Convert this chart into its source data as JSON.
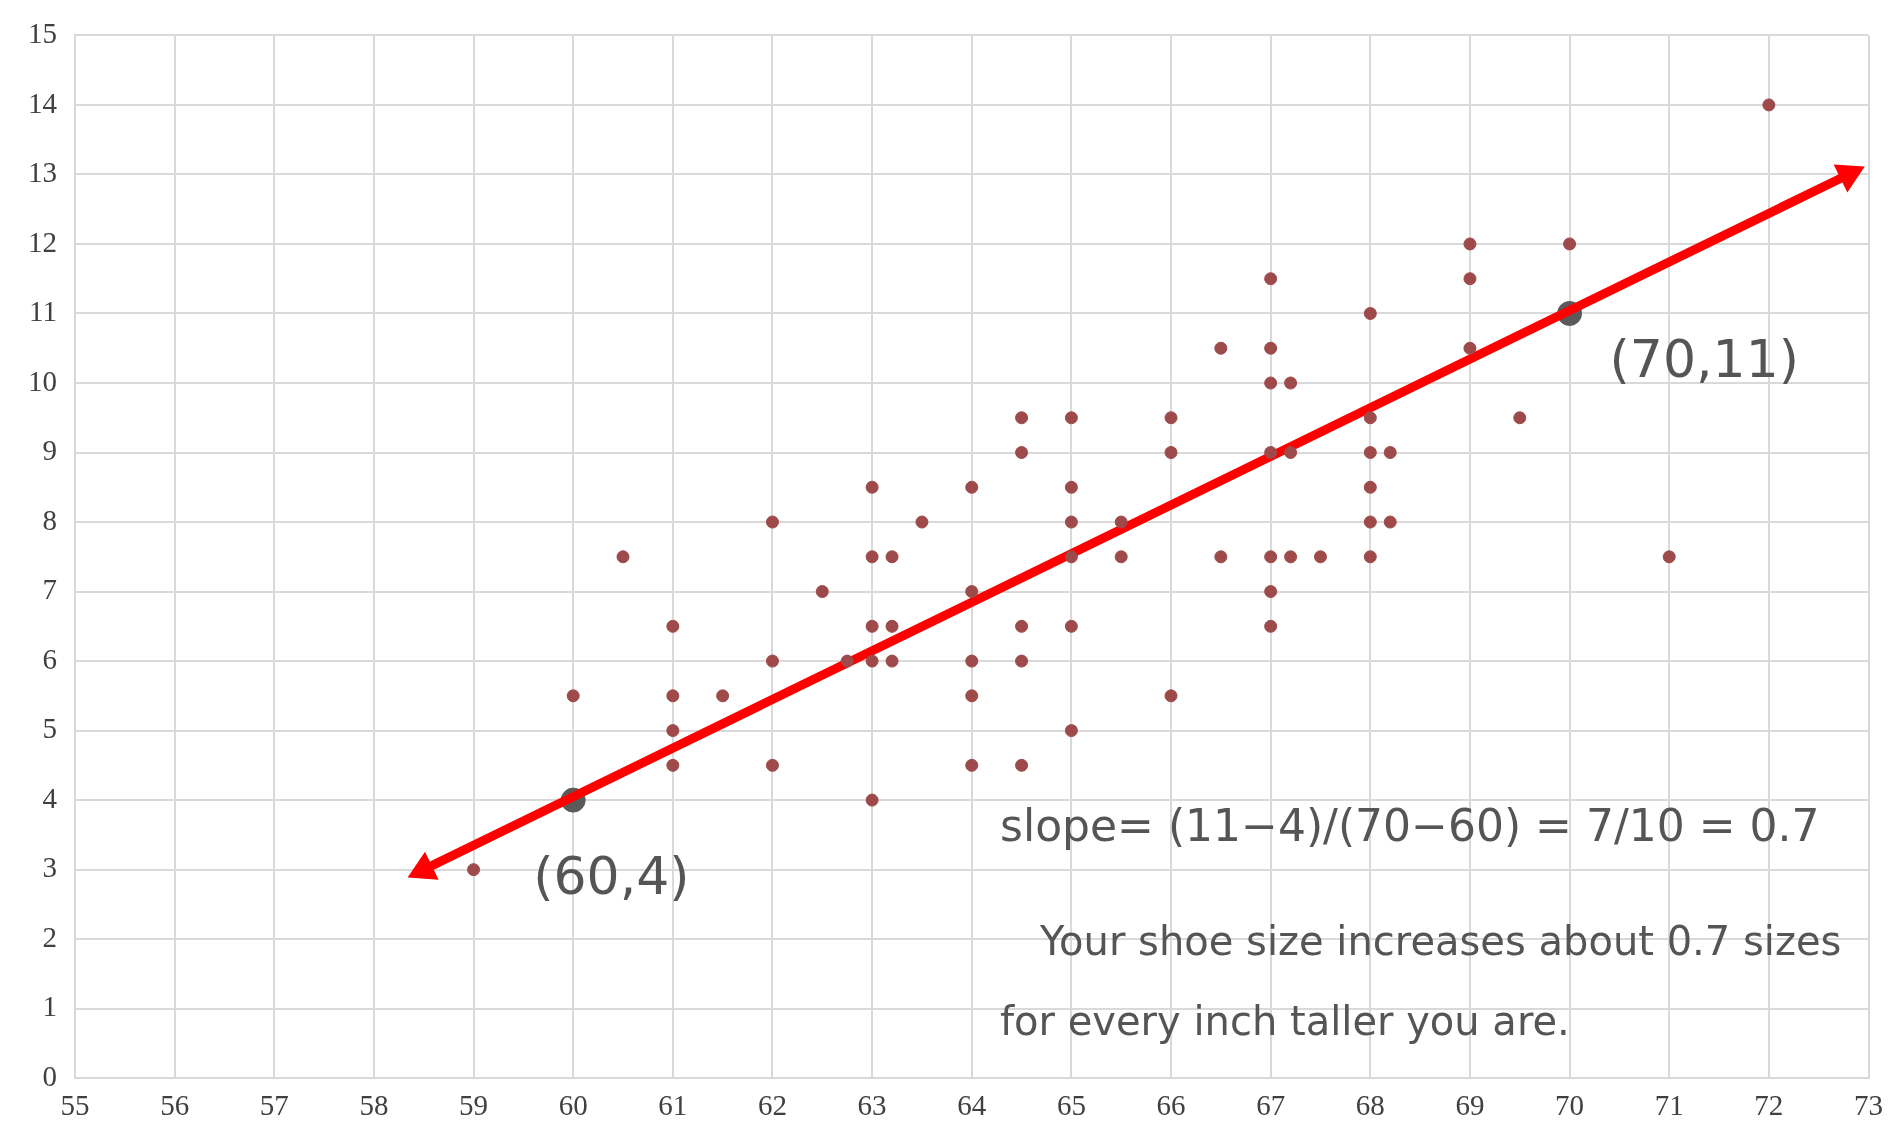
{
  "chart_data": {
    "type": "scatter",
    "xlim": [
      55,
      73
    ],
    "ylim": [
      0,
      15
    ],
    "xticks": [
      55,
      56,
      57,
      58,
      59,
      60,
      61,
      62,
      63,
      64,
      65,
      66,
      67,
      68,
      69,
      70,
      71,
      72,
      73
    ],
    "yticks": [
      0,
      1,
      2,
      3,
      4,
      5,
      6,
      7,
      8,
      9,
      10,
      11,
      12,
      13,
      14,
      15
    ],
    "grid": true,
    "legend": false,
    "marker": "circle",
    "series": [
      {
        "color": "#9e4a4a",
        "x": [
          59,
          60,
          60.5,
          61,
          61,
          61,
          61,
          61.5,
          62,
          62,
          62,
          62.5,
          62.75,
          63,
          63,
          63,
          63,
          63,
          63.2,
          63.2,
          63.2,
          63.5,
          64,
          64,
          64,
          64,
          64,
          64.5,
          64.5,
          64.5,
          64.5,
          64.5,
          65,
          65,
          65,
          65,
          65,
          65,
          65.5,
          65.5,
          66,
          66,
          66,
          66.5,
          66.5,
          67,
          67,
          67,
          67,
          67,
          67,
          67,
          67.2,
          67.2,
          67.2,
          67.5,
          68,
          68,
          68,
          68,
          68,
          68,
          68.2,
          68.2,
          69,
          69,
          69,
          69.5,
          70,
          71,
          72
        ],
        "values": [
          3,
          5.5,
          7.5,
          6.5,
          5.5,
          5,
          4.5,
          5.5,
          8,
          6,
          4.5,
          7,
          6,
          8.5,
          7.5,
          6.5,
          6,
          4,
          7.5,
          6.5,
          6,
          8,
          8.5,
          7,
          6,
          5.5,
          4.5,
          9.5,
          9,
          6.5,
          6,
          4.5,
          9.5,
          8.5,
          8,
          7.5,
          6.5,
          5,
          8,
          7.5,
          9.5,
          9,
          5.5,
          10.5,
          7.5,
          11.5,
          10.5,
          10,
          9,
          7.5,
          7,
          6.5,
          10,
          9,
          7.5,
          7.5,
          11,
          9.5,
          9,
          8.5,
          8,
          7.5,
          9,
          8,
          12,
          11.5,
          10.5,
          9.5,
          12,
          7.5,
          14
        ]
      },
      {
        "type": "line",
        "color": "#ff0000",
        "marker": "triangle",
        "x": [
          58.5,
          72.8
        ],
        "values": [
          3,
          13
        ]
      },
      {
        "color": "#5a5a5a",
        "x": [
          60,
          70
        ],
        "values": [
          4,
          11
        ]
      }
    ],
    "annotations": [
      {
        "text": "(60,4)",
        "x": 60,
        "y": 4
      },
      {
        "text": "(70,11)",
        "x": 70,
        "y": 11
      },
      "slope= (11−4)/(70−60) = 7/10 = 0.7",
      "Your shoe size increases about 0.7 sizes",
      "for every inch taller you are."
    ]
  }
}
